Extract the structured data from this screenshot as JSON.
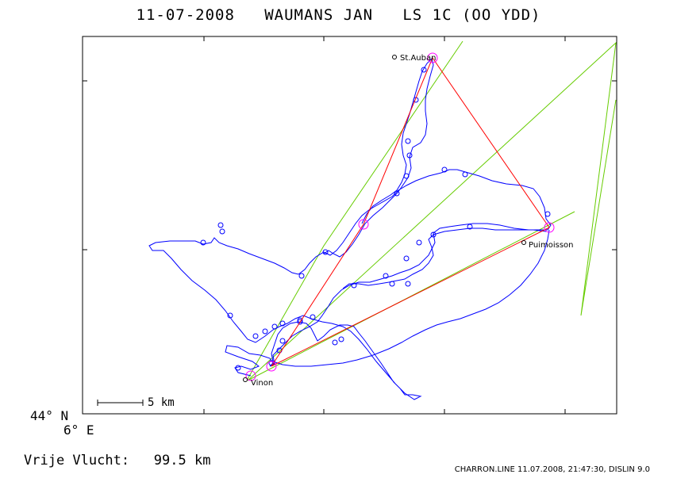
{
  "title": "11-07-2008   WAUMANS JAN   LS 1C (OO YDD)",
  "map": {
    "lat_label": "44° N",
    "lon_label": "6° E",
    "scale_label": "5 km",
    "places": [
      {
        "name": "St.Auban"
      },
      {
        "name": "Puimoisson"
      },
      {
        "name": "Vinon"
      }
    ],
    "colors": {
      "track": "#0000ff",
      "task": "#ff0000",
      "sector": "#66cc00",
      "turnpoint": "#ff00ff",
      "frame": "#000000"
    }
  },
  "footer": {
    "distance_label": "Vrije Vlucht:",
    "distance_value": "99.5 km",
    "credit": "CHARRON.LINE 11.07.2008, 21:47:30, DISLIN 9.0"
  }
}
